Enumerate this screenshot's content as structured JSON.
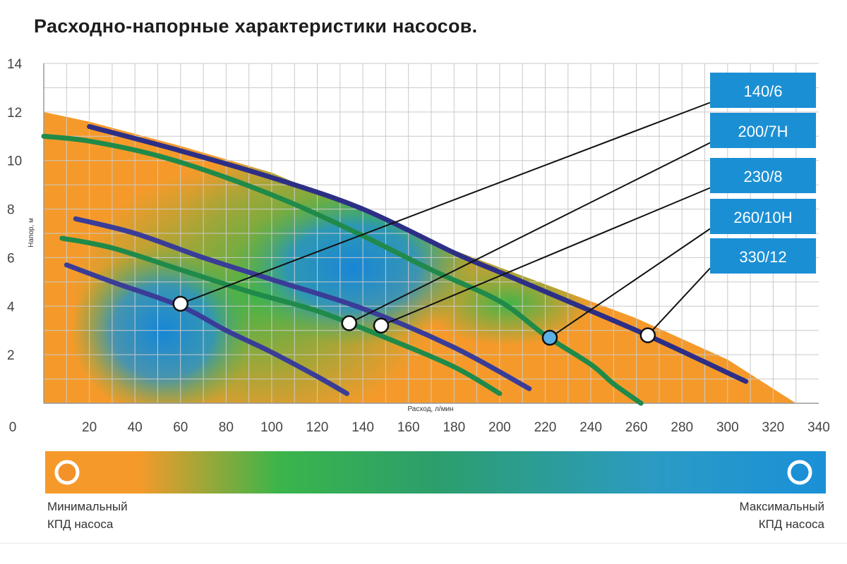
{
  "chart_data": {
    "type": "line",
    "title": "Расходно-напорные характеристики насосов.",
    "xlabel": "Расход, л/мин",
    "ylabel": "Напор, м",
    "xlim": [
      0,
      340
    ],
    "ylim": [
      0,
      14
    ],
    "x_ticks": [
      "0",
      "20",
      "40",
      "60",
      "80",
      "100",
      "120",
      "140",
      "160",
      "180",
      "200",
      "220",
      "240",
      "260",
      "280",
      "300",
      "320",
      "340"
    ],
    "y_ticks": [
      "2",
      "4",
      "6",
      "8",
      "10",
      "12",
      "14"
    ],
    "grid": true,
    "efficiency_zone_boundary": [
      [
        0,
        12.0
      ],
      [
        20,
        11.6
      ],
      [
        60,
        10.6
      ],
      [
        100,
        9.5
      ],
      [
        140,
        7.9
      ],
      [
        180,
        6.3
      ],
      [
        220,
        4.9
      ],
      [
        260,
        3.5
      ],
      [
        300,
        1.8
      ],
      [
        330,
        0
      ]
    ],
    "series": [
      {
        "name": "140/6",
        "color": "#3a3d98",
        "x": [
          10,
          30,
          60,
          80,
          100,
          120,
          133
        ],
        "y": [
          5.7,
          5.0,
          4.0,
          3.0,
          2.1,
          1.1,
          0.4
        ]
      },
      {
        "name": "200/7H",
        "color": "#1f8a4a",
        "x": [
          8,
          30,
          60,
          90,
          120,
          150,
          180,
          200
        ],
        "y": [
          6.8,
          6.4,
          5.5,
          4.6,
          3.8,
          2.7,
          1.5,
          0.4
        ]
      },
      {
        "name": "230/8",
        "color": "#3a3d98",
        "x": [
          14,
          40,
          70,
          100,
          140,
          180,
          213
        ],
        "y": [
          7.6,
          7.0,
          6.0,
          5.1,
          3.9,
          2.3,
          0.6
        ]
      },
      {
        "name": "260/10H",
        "color": "#1f8a4a",
        "x": [
          0,
          20,
          50,
          80,
          110,
          140,
          170,
          200,
          220,
          240,
          250,
          262
        ],
        "y": [
          11.0,
          10.8,
          10.2,
          9.3,
          8.2,
          6.9,
          5.5,
          4.2,
          2.8,
          1.6,
          0.8,
          0
        ]
      },
      {
        "name": "330/12",
        "color": "#2d2f86",
        "x": [
          20,
          60,
          100,
          140,
          180,
          200,
          220,
          260,
          290,
          308
        ],
        "y": [
          11.4,
          10.4,
          9.3,
          8.0,
          6.2,
          5.4,
          4.6,
          3.0,
          1.7,
          0.9
        ]
      }
    ],
    "markers": [
      {
        "series": "140/6",
        "x": 60,
        "y": 4.1
      },
      {
        "series": "200/7H",
        "x": 134,
        "y": 3.3
      },
      {
        "series": "230/8",
        "x": 148,
        "y": 3.2
      },
      {
        "series": "260/10H",
        "x": 222,
        "y": 2.7
      },
      {
        "series": "330/12",
        "x": 265,
        "y": 2.8
      }
    ]
  },
  "legend": {
    "min_line1": "Минимальный",
    "min_line2": "КПД насоса",
    "max_line1": "Максимальный",
    "max_line2": "КПД насоса",
    "min_color": "#f4922a",
    "max_color": "#1b90d5"
  },
  "colors": {
    "grid": "#c9c9c9",
    "label_box": "#1b8fd4",
    "zone_orange": "#f59a2a",
    "zone_green": "#3ab54a",
    "zone_blue": "#1a90d8"
  }
}
